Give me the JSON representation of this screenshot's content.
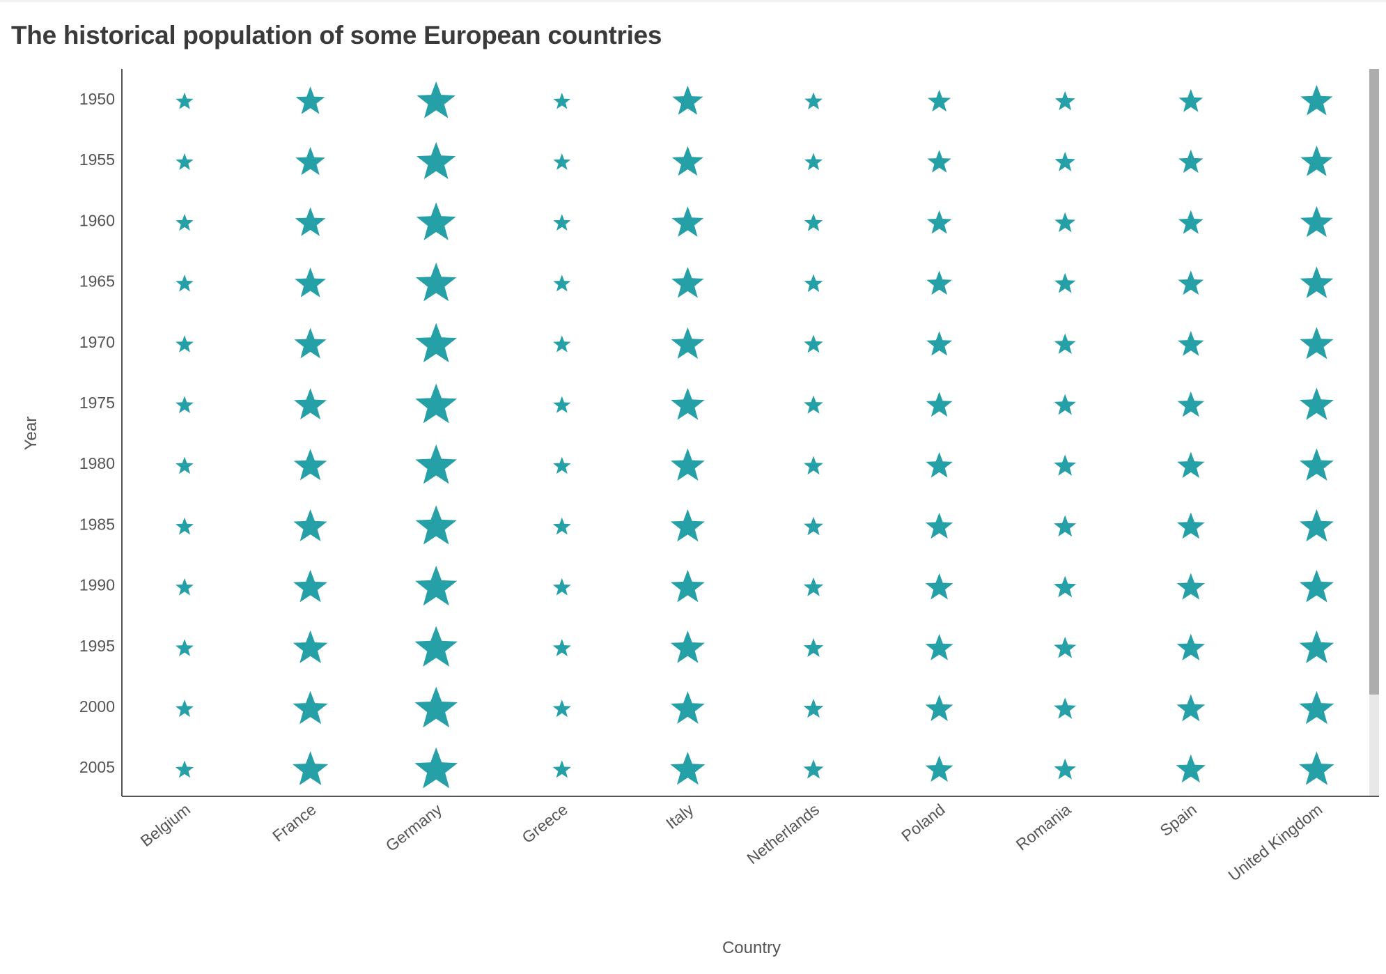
{
  "chart_data": {
    "type": "scatter",
    "marker": "star",
    "title": "The historical population of some European countries",
    "xlabel": "Country",
    "ylabel": "Year",
    "categories": [
      "Belgium",
      "France",
      "Germany",
      "Greece",
      "Italy",
      "Netherlands",
      "Poland",
      "Romania",
      "Spain",
      "United Kingdom"
    ],
    "years": [
      "1950",
      "1955",
      "1960",
      "1965",
      "1970",
      "1975",
      "1980",
      "1985",
      "1990",
      "1995",
      "2000",
      "2005"
    ],
    "size_unit": "population (millions, approx.)",
    "series": [
      {
        "country": "Belgium",
        "values": [
          8.6,
          8.9,
          9.2,
          9.5,
          9.7,
          9.8,
          9.9,
          9.9,
          10.0,
          10.1,
          10.3,
          10.5
        ]
      },
      {
        "country": "France",
        "values": [
          41.8,
          43.4,
          45.7,
          48.8,
          50.8,
          52.7,
          53.9,
          55.3,
          56.7,
          57.8,
          59.0,
          61.1
        ]
      },
      {
        "country": "Germany",
        "values": [
          70.0,
          71.3,
          73.1,
          75.6,
          78.1,
          78.7,
          78.3,
          77.7,
          79.4,
          81.7,
          82.2,
          82.5
        ]
      },
      {
        "country": "Greece",
        "values": [
          7.6,
          8.0,
          8.3,
          8.6,
          8.8,
          9.1,
          9.6,
          9.9,
          10.2,
          10.6,
          10.9,
          11.1
        ]
      },
      {
        "country": "Italy",
        "values": [
          47.1,
          48.6,
          50.2,
          52.1,
          53.8,
          55.4,
          56.4,
          56.6,
          56.7,
          56.8,
          56.9,
          58.6
        ]
      },
      {
        "country": "Netherlands",
        "values": [
          10.0,
          10.7,
          11.5,
          12.3,
          13.0,
          13.7,
          14.1,
          14.5,
          15.0,
          15.5,
          15.9,
          16.3
        ]
      },
      {
        "country": "Poland",
        "values": [
          24.8,
          27.2,
          29.6,
          31.5,
          32.5,
          34.0,
          35.6,
          37.2,
          38.1,
          38.6,
          38.3,
          38.2
        ]
      },
      {
        "country": "Romania",
        "values": [
          16.2,
          17.3,
          18.4,
          19.0,
          20.3,
          21.2,
          22.2,
          22.7,
          23.2,
          22.7,
          22.4,
          21.6
        ]
      },
      {
        "country": "Spain",
        "values": [
          28.0,
          29.1,
          30.5,
          32.1,
          33.8,
          35.6,
          37.5,
          38.5,
          38.8,
          39.4,
          40.3,
          43.4
        ]
      },
      {
        "country": "United Kingdom",
        "values": [
          50.6,
          51.0,
          52.4,
          54.3,
          55.6,
          56.2,
          56.3,
          56.6,
          57.2,
          57.9,
          58.9,
          60.2
        ]
      }
    ],
    "colors": {
      "marker": "#26a0a7",
      "axis": "#555555",
      "text": "#555555",
      "title": "#3a3a3a",
      "scroll_thumb": "#adadad",
      "scroll_track": "#e8e8e8"
    },
    "grid": false,
    "legend": "none",
    "scroll_position": 0.86
  }
}
